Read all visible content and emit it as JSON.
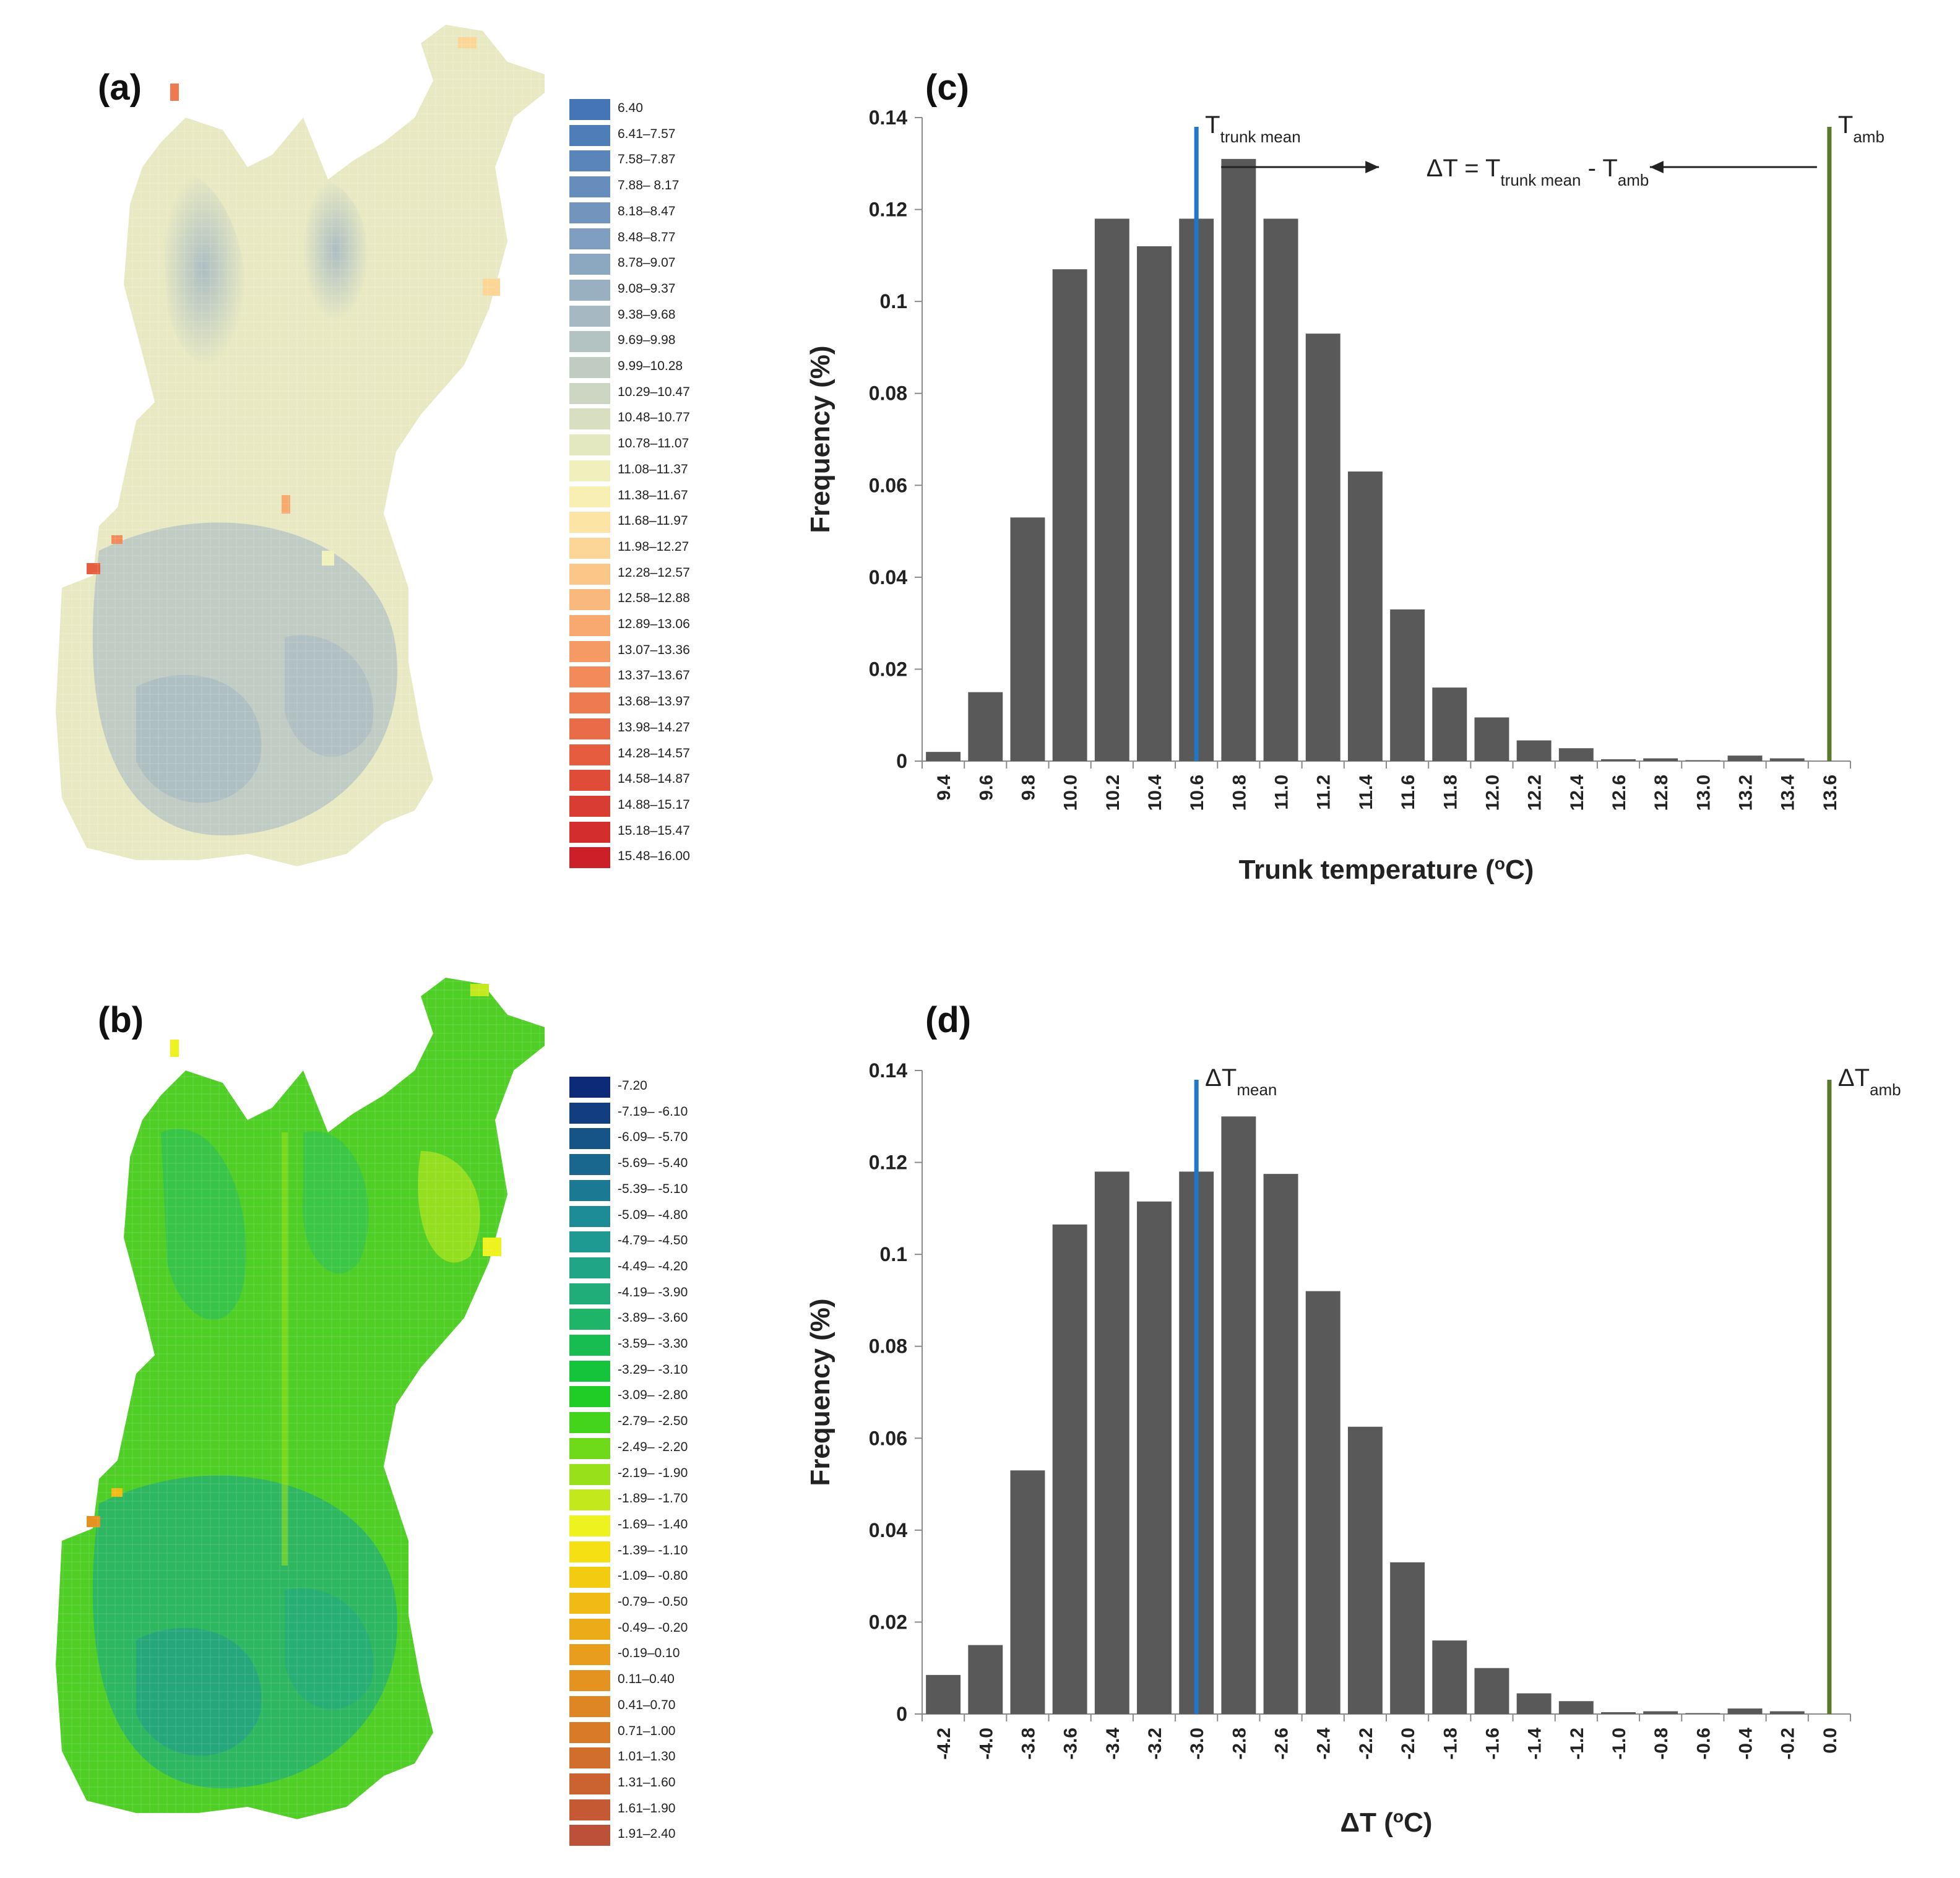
{
  "panels": {
    "a": "(a)",
    "b": "(b)",
    "c": "(c)",
    "d": "(d)"
  },
  "map_a": {
    "legend": [
      {
        "label": "6.40",
        "color": "#4575b4"
      },
      {
        "label": "6.41–7.57",
        "color": "#4f7db7"
      },
      {
        "label": "7.58–7.87",
        "color": "#5a85ba"
      },
      {
        "label": "7.88– 8.17",
        "color": "#668dbc"
      },
      {
        "label": "8.18–8.47",
        "color": "#7395bd"
      },
      {
        "label": "8.48–8.77",
        "color": "#809ebf"
      },
      {
        "label": "8.78–9.07",
        "color": "#8ca7c0"
      },
      {
        "label": "9.08–9.37",
        "color": "#99b0c1"
      },
      {
        "label": "9.38–9.68",
        "color": "#a6b9c2"
      },
      {
        "label": "9.69–9.98",
        "color": "#b3c3c2"
      },
      {
        "label": "9.99–10.28",
        "color": "#c0ccc2"
      },
      {
        "label": "10.29–10.47",
        "color": "#ccd6c2"
      },
      {
        "label": "10.48–10.77",
        "color": "#d8dfc1"
      },
      {
        "label": "10.78–11.07",
        "color": "#e4e8c0"
      },
      {
        "label": "11.08–11.37",
        "color": "#f0f0bd"
      },
      {
        "label": "11.38–11.67",
        "color": "#f8efb3"
      },
      {
        "label": "11.68–11.97",
        "color": "#fbe4a4"
      },
      {
        "label": "11.98–12.27",
        "color": "#fbd696"
      },
      {
        "label": "12.28–12.57",
        "color": "#fac788"
      },
      {
        "label": "12.58–12.88",
        "color": "#f9b87c"
      },
      {
        "label": "12.89–13.06",
        "color": "#f7a970"
      },
      {
        "label": "13.07–13.36",
        "color": "#f59a65"
      },
      {
        "label": "13.37–13.67",
        "color": "#f28a5a"
      },
      {
        "label": "13.68–13.97",
        "color": "#ee7b50"
      },
      {
        "label": "13.98–14.27",
        "color": "#ea6b47"
      },
      {
        "label": "14.28–14.57",
        "color": "#e55c3f"
      },
      {
        "label": "14.58–14.87",
        "color": "#df4c38"
      },
      {
        "label": "14.88–15.17",
        "color": "#d93d32"
      },
      {
        "label": "15.18–15.47",
        "color": "#d32e2d"
      },
      {
        "label": "15.48–16.00",
        "color": "#cc2028"
      }
    ]
  },
  "map_b": {
    "legend": [
      {
        "label": "-7.20",
        "color": "#0d2a78"
      },
      {
        "label": "-7.19– -6.10",
        "color": "#123e80"
      },
      {
        "label": "-6.09– -5.70",
        "color": "#165387"
      },
      {
        "label": "-5.69– -5.40",
        "color": "#19678e"
      },
      {
        "label": "-5.39– -5.10",
        "color": "#1b7a93"
      },
      {
        "label": "-5.09– -4.80",
        "color": "#1d8c96"
      },
      {
        "label": "-4.79– -4.50",
        "color": "#1f9a92"
      },
      {
        "label": "-4.49– -4.20",
        "color": "#20a587"
      },
      {
        "label": "-4.19– -3.90",
        "color": "#21ad7a"
      },
      {
        "label": "-3.89– -3.60",
        "color": "#1eb568"
      },
      {
        "label": "-3.59– -3.30",
        "color": "#18bd52"
      },
      {
        "label": "-3.29– -3.10",
        "color": "#14c53c"
      },
      {
        "label": "-3.09– -2.80",
        "color": "#1fcd26"
      },
      {
        "label": "-2.79– -2.50",
        "color": "#45d41c"
      },
      {
        "label": "-2.49– -2.20",
        "color": "#6fda1a"
      },
      {
        "label": "-2.19– -1.90",
        "color": "#98e01a"
      },
      {
        "label": "-1.89– -1.70",
        "color": "#c3e81c"
      },
      {
        "label": "-1.69– -1.40",
        "color": "#eef21e"
      },
      {
        "label": "-1.39– -1.10",
        "color": "#f5e014"
      },
      {
        "label": "-1.09– -0.80",
        "color": "#f3cc12"
      },
      {
        "label": "-0.79– -0.50",
        "color": "#f0bb14"
      },
      {
        "label": "-0.49– -0.20",
        "color": "#ecab18"
      },
      {
        "label": "-0.19–0.10",
        "color": "#e89e1c"
      },
      {
        "label": "0.11–0.40",
        "color": "#e49220"
      },
      {
        "label": "0.41–0.70",
        "color": "#df8624"
      },
      {
        "label": "0.71–1.00",
        "color": "#d97a28"
      },
      {
        "label": "1.01–1.30",
        "color": "#d26e2c"
      },
      {
        "label": "1.31–1.60",
        "color": "#cb6330"
      },
      {
        "label": "1.61–1.90",
        "color": "#c45934"
      },
      {
        "label": "1.91–2.40",
        "color": "#bc5038"
      }
    ]
  },
  "chart_data": [
    {
      "type": "bar",
      "panel": "(c)",
      "xlabel": "Trunk temperature (°C)",
      "ylabel": "Frequency (%)",
      "ylim": [
        0,
        0.14
      ],
      "yticks": [
        "0",
        "0.02",
        "0.04",
        "0.06",
        "0.08",
        "0.1",
        "0.12",
        "0.14"
      ],
      "categories": [
        "9.4",
        "9.6",
        "9.8",
        "10.0",
        "10.2",
        "10.4",
        "10.6",
        "10.8",
        "11.0",
        "11.2",
        "11.4",
        "11.6",
        "11.8",
        "12.0",
        "12.2",
        "12.4",
        "12.6",
        "12.8",
        "13.0",
        "13.2",
        "13.4",
        "13.6"
      ],
      "values": [
        0.002,
        0.015,
        0.053,
        0.107,
        0.118,
        0.112,
        0.118,
        0.131,
        0.118,
        0.093,
        0.063,
        0.033,
        0.016,
        0.0095,
        0.0045,
        0.0028,
        0.0004,
        0.0006,
        0.0002,
        0.0012,
        0.0006,
        0
      ],
      "bar_color": "#595959",
      "vlines": [
        {
          "x": "10.6",
          "label": "T",
          "sub": "trunk mean",
          "color": "#1f77c8"
        },
        {
          "x": "13.6",
          "label": "T",
          "sub": "amb",
          "color": "#5a7a2a"
        }
      ],
      "equation": {
        "lead": "ΔT = T",
        "sub1": "trunk mean",
        "mid": " - T",
        "sub2": "amb"
      }
    },
    {
      "type": "bar",
      "panel": "(d)",
      "xlabel": "ΔT (°C)",
      "ylabel": "Frequency (%)",
      "ylim": [
        0,
        0.14
      ],
      "yticks": [
        "0",
        "0.02",
        "0.04",
        "0.06",
        "0.08",
        "0.1",
        "0.12",
        "0.14"
      ],
      "categories": [
        "-4.2",
        "-4.0",
        "-3.8",
        "-3.6",
        "-3.4",
        "-3.2",
        "-3.0",
        "-2.8",
        "-2.6",
        "-2.4",
        "-2.2",
        "-2.0",
        "-1.8",
        "-1.6",
        "-1.4",
        "-1.2",
        "-1.0",
        "-0.8",
        "-0.6",
        "-0.4",
        "-0.2",
        "0.0"
      ],
      "values": [
        0.0085,
        0.015,
        0.053,
        0.1065,
        0.118,
        0.1115,
        0.118,
        0.13,
        0.1175,
        0.092,
        0.0625,
        0.033,
        0.016,
        0.01,
        0.0045,
        0.0028,
        0.0004,
        0.0006,
        0.0002,
        0.0012,
        0.0006,
        0
      ],
      "bar_color": "#595959",
      "vlines": [
        {
          "x": "-3.0",
          "label": "ΔT",
          "sub": "mean",
          "color": "#1f77c8"
        },
        {
          "x": "0.0",
          "label": "ΔT",
          "sub": "amb",
          "color": "#5a7a2a"
        }
      ]
    }
  ]
}
